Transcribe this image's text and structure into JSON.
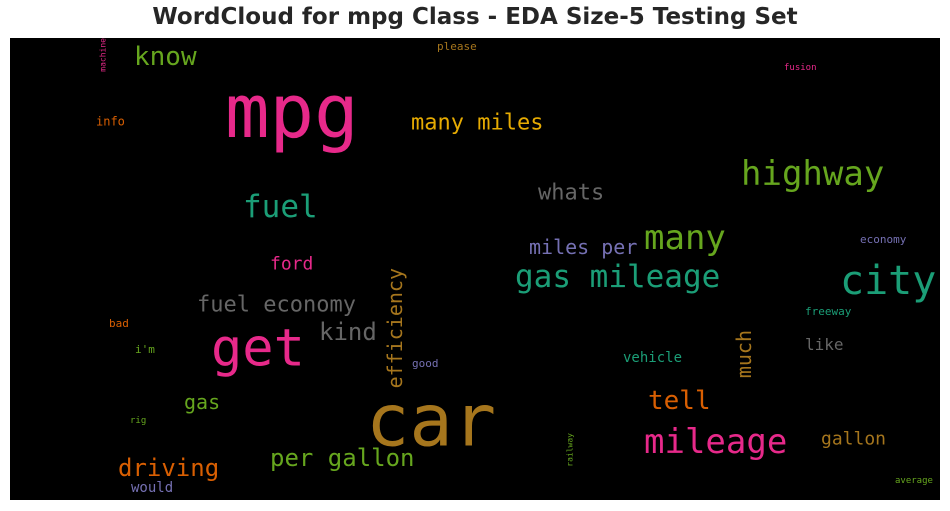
{
  "chart_data": {
    "type": "wordcloud",
    "title": "WordCloud for mpg Class - EDA Size-5 Testing Set",
    "background": "#000000",
    "words": [
      {
        "text": "mpg",
        "color": "#e7298a",
        "orientation": "horizontal"
      },
      {
        "text": "car",
        "color": "#a6761d",
        "orientation": "horizontal"
      },
      {
        "text": "get",
        "color": "#e7298a",
        "orientation": "horizontal"
      },
      {
        "text": "city",
        "color": "#1b9e77",
        "orientation": "horizontal"
      },
      {
        "text": "highway",
        "color": "#66a61e",
        "orientation": "horizontal"
      },
      {
        "text": "mileage",
        "color": "#e7298a",
        "orientation": "horizontal"
      },
      {
        "text": "many",
        "color": "#66a61e",
        "orientation": "horizontal"
      },
      {
        "text": "gas mileage",
        "color": "#1b9e77",
        "orientation": "horizontal"
      },
      {
        "text": "fuel",
        "color": "#1b9e77",
        "orientation": "horizontal"
      },
      {
        "text": "know",
        "color": "#66a61e",
        "orientation": "horizontal"
      },
      {
        "text": "many miles",
        "color": "#e6ab02",
        "orientation": "horizontal"
      },
      {
        "text": "whats",
        "color": "#666666",
        "orientation": "horizontal"
      },
      {
        "text": "fuel economy",
        "color": "#666666",
        "orientation": "horizontal"
      },
      {
        "text": "per gallon",
        "color": "#66a61e",
        "orientation": "horizontal"
      },
      {
        "text": "tell",
        "color": "#d95f02",
        "orientation": "horizontal"
      },
      {
        "text": "driving",
        "color": "#d95f02",
        "orientation": "horizontal"
      },
      {
        "text": "kind",
        "color": "#666666",
        "orientation": "horizontal"
      },
      {
        "text": "efficiency",
        "color": "#a6761d",
        "orientation": "vertical"
      },
      {
        "text": "much",
        "color": "#a6761d",
        "orientation": "vertical"
      },
      {
        "text": "miles per",
        "color": "#7570b3",
        "orientation": "horizontal"
      },
      {
        "text": "gas",
        "color": "#66a61e",
        "orientation": "horizontal"
      },
      {
        "text": "gallon",
        "color": "#a6761d",
        "orientation": "horizontal"
      },
      {
        "text": "ford",
        "color": "#e7298a",
        "orientation": "horizontal"
      },
      {
        "text": "like",
        "color": "#666666",
        "orientation": "horizontal"
      },
      {
        "text": "vehicle",
        "color": "#1b9e77",
        "orientation": "horizontal"
      },
      {
        "text": "would",
        "color": "#7570b3",
        "orientation": "horizontal"
      },
      {
        "text": "info",
        "color": "#d95f02",
        "orientation": "horizontal"
      },
      {
        "text": "please",
        "color": "#a6761d",
        "orientation": "horizontal"
      },
      {
        "text": "economy",
        "color": "#7570b3",
        "orientation": "horizontal"
      },
      {
        "text": "freeway",
        "color": "#1b9e77",
        "orientation": "horizontal"
      },
      {
        "text": "bad",
        "color": "#d95f02",
        "orientation": "horizontal"
      },
      {
        "text": "i'm",
        "color": "#66a61e",
        "orientation": "horizontal"
      },
      {
        "text": "good",
        "color": "#7570b3",
        "orientation": "horizontal"
      },
      {
        "text": "rig",
        "color": "#66a61e",
        "orientation": "horizontal"
      },
      {
        "text": "machine",
        "color": "#e7298a",
        "orientation": "vertical"
      },
      {
        "text": "railway",
        "color": "#66a61e",
        "orientation": "vertical"
      },
      {
        "text": "fusion",
        "color": "#e7298a",
        "orientation": "horizontal"
      },
      {
        "text": "average",
        "color": "#66a61e",
        "orientation": "horizontal"
      }
    ]
  }
}
